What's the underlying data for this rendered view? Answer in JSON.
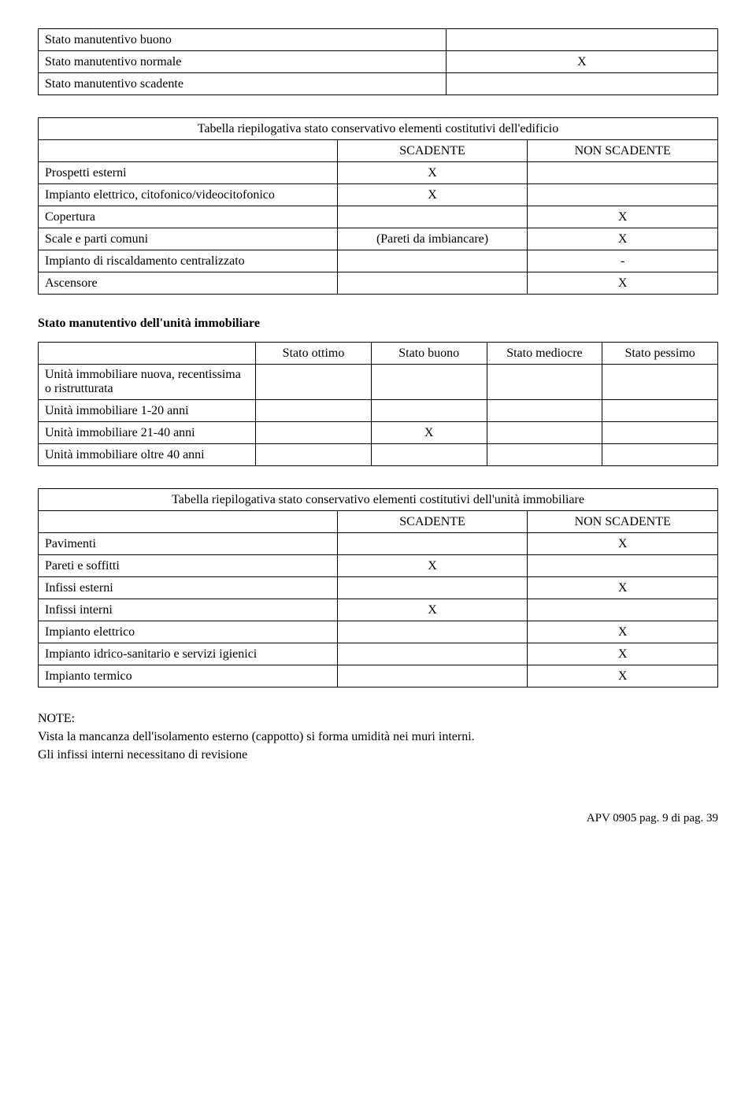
{
  "table1": {
    "rows": [
      {
        "label": "Stato manutentivo buono",
        "val": ""
      },
      {
        "label": "Stato manutentivo normale",
        "val": "X"
      },
      {
        "label": "Stato manutentivo scadente",
        "val": ""
      }
    ]
  },
  "table2": {
    "title": "Tabella riepilogativa stato conservativo elementi costitutivi dell'edificio",
    "h1": "SCADENTE",
    "h2": "NON SCADENTE",
    "rows": [
      {
        "label": "Prospetti esterni",
        "c1": "X",
        "c2": ""
      },
      {
        "label": "Impianto elettrico, citofonico/videocitofonico",
        "c1": "X",
        "c2": ""
      },
      {
        "label": "Copertura",
        "c1": "",
        "c2": "X"
      },
      {
        "label": "Scale e parti comuni",
        "c1": "(Pareti da imbiancare)",
        "c2": "X"
      },
      {
        "label": "Impianto di riscaldamento centralizzato",
        "c1": "",
        "c2": "-"
      },
      {
        "label": "Ascensore",
        "c1": "",
        "c2": "X"
      }
    ]
  },
  "section3_title": "Stato manutentivo dell'unità immobiliare",
  "table3": {
    "h1": "Stato ottimo",
    "h2": "Stato buono",
    "h3": "Stato mediocre",
    "h4": "Stato pessimo",
    "rows": [
      {
        "label": "Unità immobiliare nuova, recentissima o ristrutturata",
        "c1": "",
        "c2": "",
        "c3": "",
        "c4": ""
      },
      {
        "label": "Unità immobiliare 1-20 anni",
        "c1": "",
        "c2": "",
        "c3": "",
        "c4": ""
      },
      {
        "label": "Unità immobiliare 21-40 anni",
        "c1": "",
        "c2": "X",
        "c3": "",
        "c4": ""
      },
      {
        "label": "Unità immobiliare oltre 40 anni",
        "c1": "",
        "c2": "",
        "c3": "",
        "c4": ""
      }
    ]
  },
  "table4": {
    "title": "Tabella riepilogativa stato conservativo elementi costitutivi dell'unità immobiliare",
    "h1": "SCADENTE",
    "h2": "NON SCADENTE",
    "rows": [
      {
        "label": "Pavimenti",
        "c1": "",
        "c2": "X"
      },
      {
        "label": "Pareti e soffitti",
        "c1": "X",
        "c2": ""
      },
      {
        "label": "Infissi esterni",
        "c1": "",
        "c2": "X"
      },
      {
        "label": "Infissi interni",
        "c1": "X",
        "c2": ""
      },
      {
        "label": "Impianto elettrico",
        "c1": "",
        "c2": "X"
      },
      {
        "label": "Impianto idrico-sanitario e servizi igienici",
        "c1": "",
        "c2": "X"
      },
      {
        "label": "Impianto termico",
        "c1": "",
        "c2": "X"
      }
    ]
  },
  "notes": {
    "heading": "NOTE:",
    "line1": "Vista la mancanza dell'isolamento esterno (cappotto) si forma umidità nei muri interni.",
    "line2": "Gli infissi interni necessitano di revisione"
  },
  "footer": "APV 0905 pag. 9 di pag. 39"
}
